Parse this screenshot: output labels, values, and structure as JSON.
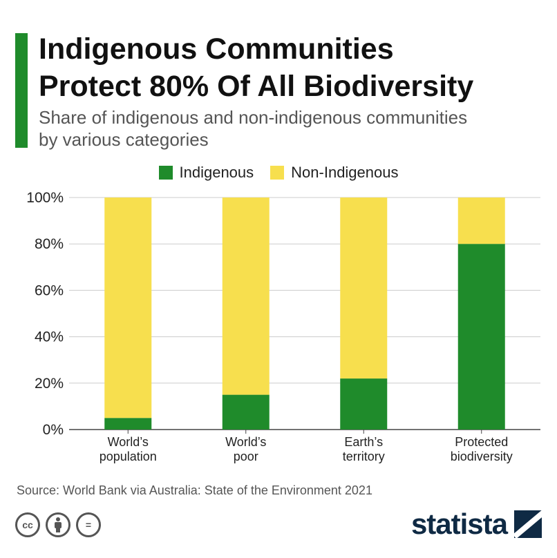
{
  "header": {
    "title_line1": "Indigenous Communities",
    "title_line2": "Protect 80% Of All Biodiversity",
    "subtitle_line1": "Share of indigenous and non-indigenous communities",
    "subtitle_line2": "by various categories"
  },
  "colors": {
    "accent": "#1f8b2b",
    "indigenous": "#1f8b2b",
    "non_indigenous": "#f7df4e",
    "grid": "#cccccc"
  },
  "chart_data": {
    "type": "bar",
    "stacked": true,
    "categories": [
      [
        "World’s",
        "population"
      ],
      [
        "World’s",
        "poor"
      ],
      [
        "Earth’s",
        "territory"
      ],
      [
        "Protected",
        "biodiversity"
      ]
    ],
    "series": [
      {
        "name": "Indigenous",
        "values": [
          5,
          15,
          22,
          80
        ]
      },
      {
        "name": "Non-Indigenous",
        "values": [
          95,
          85,
          78,
          20
        ]
      }
    ],
    "y_ticks": [
      "0%",
      "20%",
      "40%",
      "60%",
      "80%",
      "100%"
    ],
    "ylim": [
      0,
      100
    ],
    "grid": true,
    "legend_position": "top-center"
  },
  "footer": {
    "source": "Source: World Bank via Australia: State of the Environment 2021",
    "license_icons": [
      "cc-icon",
      "attribution-icon",
      "no-derivatives-icon"
    ],
    "license_cc": "cc",
    "license_nd": "=",
    "logo_text": "statista"
  }
}
